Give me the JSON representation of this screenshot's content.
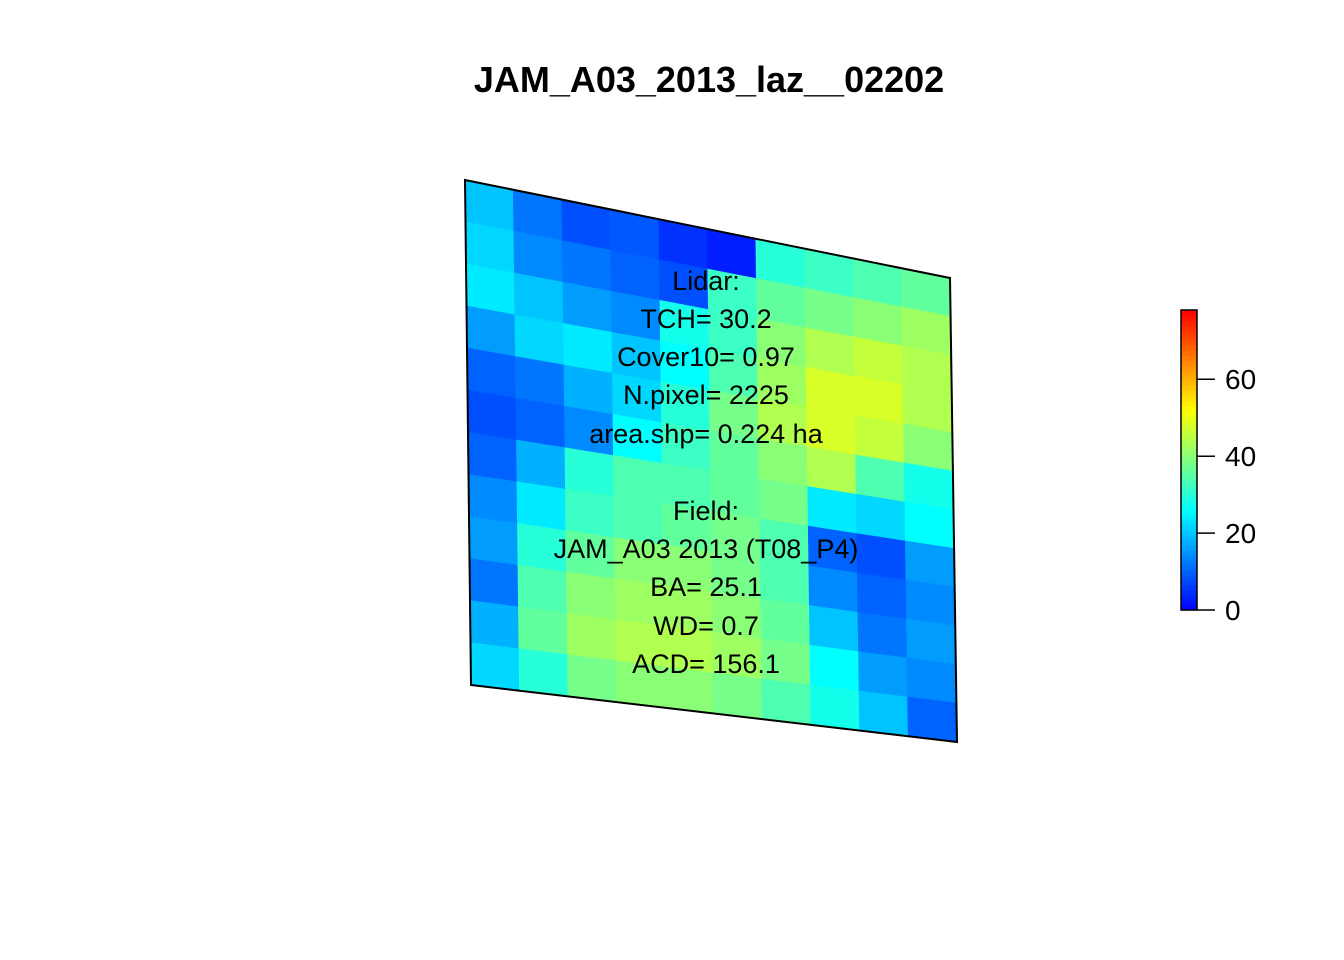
{
  "chart_data": {
    "type": "heatmap",
    "title": "JAM_A03_2013_laz__02202",
    "xlabel": "",
    "ylabel": "",
    "grid": false,
    "legend": "right",
    "colorbar": {
      "min": 0,
      "max": 78,
      "ticks": [
        {
          "value": 0,
          "label": "0"
        },
        {
          "value": 20,
          "label": "20"
        },
        {
          "value": 40,
          "label": "40"
        },
        {
          "value": 60,
          "label": "60"
        }
      ],
      "palette": [
        "#0000ff",
        "#0080ff",
        "#00ffff",
        "#80ff80",
        "#ffff00",
        "#ff8000",
        "#ff0000"
      ]
    },
    "raster": {
      "rows": 12,
      "cols": 10,
      "values": [
        [
          20,
          12,
          8,
          9,
          5,
          3,
          30,
          32,
          34,
          36
        ],
        [
          22,
          14,
          12,
          10,
          8,
          32,
          36,
          38,
          40,
          42
        ],
        [
          24,
          20,
          16,
          14,
          28,
          32,
          40,
          44,
          46,
          44
        ],
        [
          16,
          22,
          24,
          20,
          26,
          34,
          42,
          48,
          48,
          44
        ],
        [
          10,
          12,
          18,
          22,
          30,
          38,
          44,
          48,
          46,
          40
        ],
        [
          8,
          10,
          14,
          26,
          32,
          36,
          40,
          44,
          34,
          28
        ],
        [
          10,
          18,
          30,
          34,
          34,
          36,
          38,
          24,
          22,
          26
        ],
        [
          14,
          24,
          32,
          34,
          36,
          38,
          34,
          10,
          8,
          16
        ],
        [
          16,
          30,
          36,
          40,
          40,
          38,
          34,
          14,
          10,
          14
        ],
        [
          12,
          34,
          40,
          42,
          42,
          40,
          36,
          20,
          12,
          16
        ],
        [
          18,
          36,
          42,
          44,
          44,
          42,
          38,
          26,
          16,
          14
        ],
        [
          22,
          30,
          38,
          40,
          40,
          38,
          34,
          28,
          20,
          10
        ]
      ]
    },
    "annotations": [
      "Lidar:",
      "TCH= 30.2",
      "Cover10= 0.97",
      "N.pixel= 2225",
      "area.shp= 0.224 ha",
      "",
      "Field:",
      "JAM_A03 2013 (T08_P4)",
      "BA= 25.1",
      "WD= 0.7",
      "ACD= 156.1"
    ]
  }
}
